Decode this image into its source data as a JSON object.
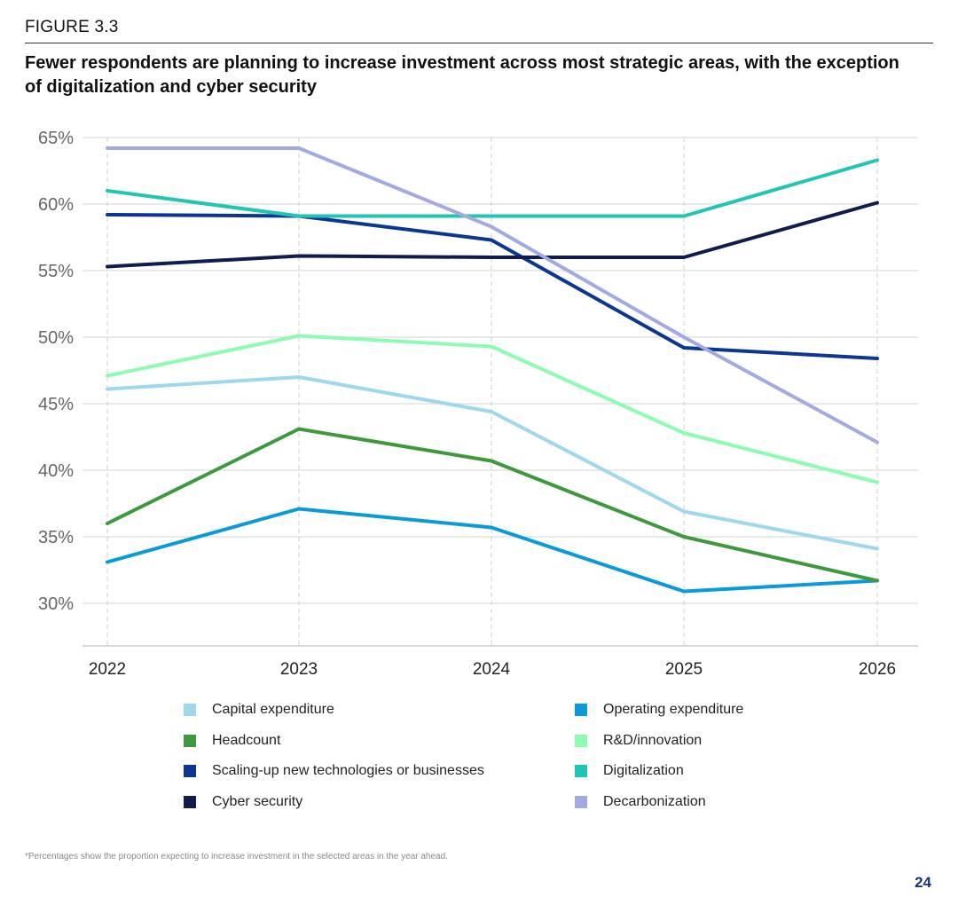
{
  "figure_label": "FIGURE 3.3",
  "title": "Fewer respondents are planning to increase investment across most strategic areas, with the exception of digitalization and cyber security",
  "footnote": "*Percentages show the proportion expecting to increase investment in the selected areas in the year ahead.",
  "page_number": "24",
  "chart_data": {
    "type": "line",
    "title": "Fewer respondents are planning to increase investment across most strategic areas, with the exception of digitalization and cyber security",
    "xlabel": "",
    "ylabel": "",
    "x": [
      "2022",
      "2023",
      "2024",
      "2025",
      "2026"
    ],
    "ylim": [
      27,
      65
    ],
    "yticks": [
      30,
      35,
      40,
      45,
      50,
      55,
      60,
      65
    ],
    "ytick_labels": [
      "30%",
      "35%",
      "40%",
      "45%",
      "50%",
      "55%",
      "60%",
      "65%"
    ],
    "grid": "horizontal solid, vertical dashed",
    "legend_position": "bottom",
    "series": [
      {
        "name": "Capital expenditure",
        "color": "#9ed8ee",
        "values": [
          46.1,
          47.0,
          44.4,
          36.9,
          34.1
        ]
      },
      {
        "name": "Operating expenditure",
        "color": "#0a9ad9",
        "values": [
          33.1,
          37.1,
          35.7,
          30.9,
          31.7
        ]
      },
      {
        "name": "Headcount",
        "color": "#3c9a3c",
        "values": [
          36.0,
          43.1,
          40.7,
          35.0,
          31.7
        ]
      },
      {
        "name": "R&D/innovation",
        "color": "#8cfcb0",
        "values": [
          47.1,
          50.1,
          49.3,
          42.8,
          39.1
        ]
      },
      {
        "name": "Scaling-up new technologies or businesses",
        "color": "#0a3694",
        "values": [
          59.2,
          59.1,
          57.3,
          49.2,
          48.4
        ]
      },
      {
        "name": "Digitalization",
        "color": "#22c4b4",
        "values": [
          61.0,
          59.1,
          59.1,
          59.1,
          63.3
        ]
      },
      {
        "name": "Cyber security",
        "color": "#101c4e",
        "values": [
          55.3,
          56.1,
          56.0,
          56.0,
          60.1
        ]
      },
      {
        "name": "Decarbonization",
        "color": "#a3a9e2",
        "values": [
          64.2,
          64.2,
          58.3,
          50.0,
          42.1
        ]
      }
    ]
  },
  "legend_order": [
    "Capital expenditure",
    "Operating expenditure",
    "Headcount",
    "R&D/innovation",
    "Scaling-up new technologies or businesses",
    "Digitalization",
    "Cyber security",
    "Decarbonization"
  ]
}
